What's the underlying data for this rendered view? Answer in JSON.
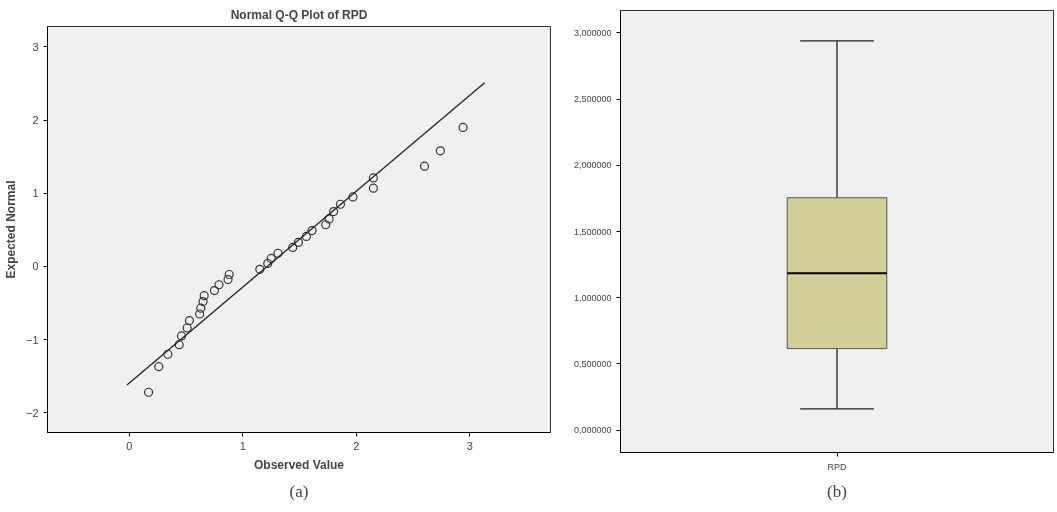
{
  "chart_data": [
    {
      "type": "scatter",
      "title": "Normal Q-Q Plot of RPD",
      "xlabel": "Observed Value",
      "ylabel": "Expected Normal",
      "xlim": [
        -0.72,
        3.71
      ],
      "ylim": [
        -2.27,
        3.28
      ],
      "xticks": [
        0,
        1,
        2,
        3
      ],
      "yticks": [
        -2,
        -1,
        0,
        1,
        2,
        3
      ],
      "grid": false,
      "annotations": [
        "(a)"
      ],
      "series": [
        {
          "type": "scatter",
          "marker": "circle",
          "color": "#333333",
          "x": [
            0.17,
            0.26,
            0.34,
            0.44,
            0.46,
            0.51,
            0.53,
            0.62,
            0.63,
            0.65,
            0.66,
            0.75,
            0.79,
            0.87,
            0.88,
            1.15,
            1.22,
            1.25,
            1.31,
            1.44,
            1.49,
            1.56,
            1.61,
            1.73,
            1.76,
            1.8,
            1.86,
            1.97,
            2.15,
            2.15,
            2.6,
            2.74,
            2.94
          ],
          "values": [
            -1.72,
            -1.37,
            -1.2,
            -1.07,
            -0.95,
            -0.84,
            -0.74,
            -0.65,
            -0.57,
            -0.48,
            -0.4,
            -0.33,
            -0.25,
            -0.18,
            -0.11,
            -0.04,
            0.04,
            0.11,
            0.18,
            0.26,
            0.33,
            0.41,
            0.49,
            0.57,
            0.65,
            0.75,
            0.85,
            0.95,
            1.07,
            1.21,
            1.37,
            1.58,
            1.9
          ]
        },
        {
          "type": "line",
          "color": "#222222",
          "x": [
            -0.02,
            3.13
          ],
          "values": [
            -1.62,
            2.51
          ]
        }
      ]
    },
    {
      "type": "box",
      "categories": [
        "RPD"
      ],
      "ylim": [
        -0.17,
        3.17
      ],
      "yticks": [
        {
          "value": 0,
          "label": "0,000000"
        },
        {
          "value": 0.5,
          "label": "0,500000"
        },
        {
          "value": 1,
          "label": "1,000000"
        },
        {
          "value": 1.5,
          "label": "1,500000"
        },
        {
          "value": 2,
          "label": "2,000000"
        },
        {
          "value": 2.5,
          "label": "2,500000"
        },
        {
          "value": 3,
          "label": "3,000000"
        }
      ],
      "grid": false,
      "annotations": [
        "(b)"
      ],
      "series": [
        {
          "color": "#d4cf98",
          "boxes": [
            {
              "low": 0.16,
              "q1": 0.615,
              "median": 1.185,
              "q3": 1.755,
              "high": 2.94
            }
          ]
        }
      ]
    }
  ]
}
